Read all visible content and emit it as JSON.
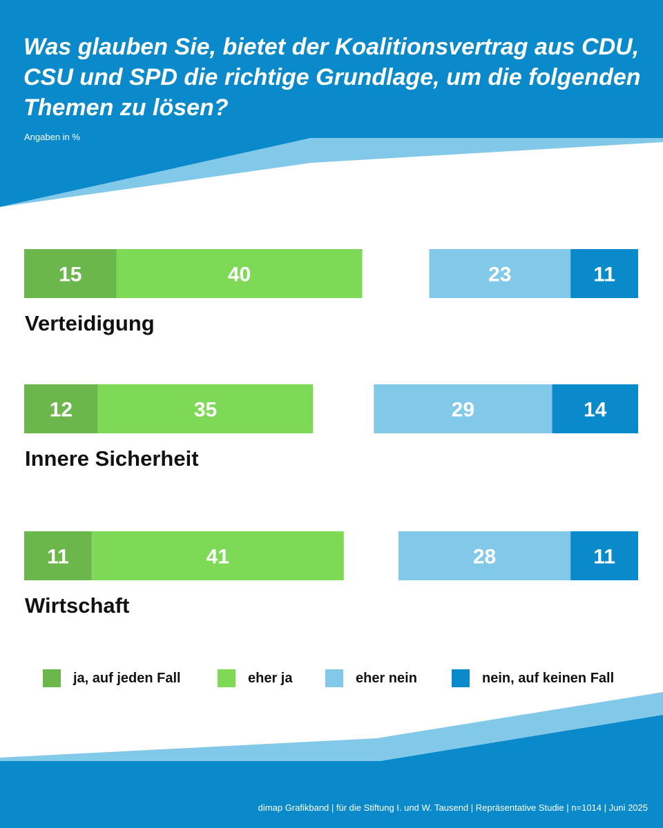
{
  "header": {
    "question": "Was glauben Sie, bietet der Koalitionsvertrag aus CDU, CSU und SPD die richtige Grundlage, um die folgenden Themen zu lösen?",
    "unit_note": "Angaben in %"
  },
  "colors": {
    "primary_blue": "#0a8acb",
    "light_blue_band": "#82c8e8",
    "dark_green": "#6cb74b",
    "light_green": "#7ed957",
    "light_blue": "#82c8e8",
    "dark_blue": "#0a8acb"
  },
  "chart_data": {
    "type": "bar",
    "orientation": "horizontal",
    "layout": "diverging",
    "unit": "%",
    "categories": [
      "Verteidigung",
      "Innere Sicherheit",
      "Wirtschaft"
    ],
    "series": [
      {
        "name": "ja, auf jeden Fall",
        "side": "left",
        "color": "#6cb74b",
        "values": [
          15,
          12,
          11
        ]
      },
      {
        "name": "eher ja",
        "side": "left",
        "color": "#7ed957",
        "values": [
          40,
          35,
          41
        ]
      },
      {
        "name": "eher nein",
        "side": "right",
        "color": "#82c8e8",
        "values": [
          23,
          29,
          28
        ]
      },
      {
        "name": "nein, auf keinen Fall",
        "side": "right",
        "color": "#0a8acb",
        "values": [
          11,
          14,
          11
        ]
      }
    ]
  },
  "legend": [
    {
      "label": "ja, auf jeden Fall",
      "color": "#6cb74b"
    },
    {
      "label": "eher ja",
      "color": "#7ed957"
    },
    {
      "label": "eher nein",
      "color": "#82c8e8"
    },
    {
      "label": "nein, auf keinen Fall",
      "color": "#0a8acb"
    }
  ],
  "footer": {
    "source": "dimap Grafikband | für die Stiftung I. und W. Tausend | Repräsentative Studie | n=1014 | Juni 2025"
  }
}
